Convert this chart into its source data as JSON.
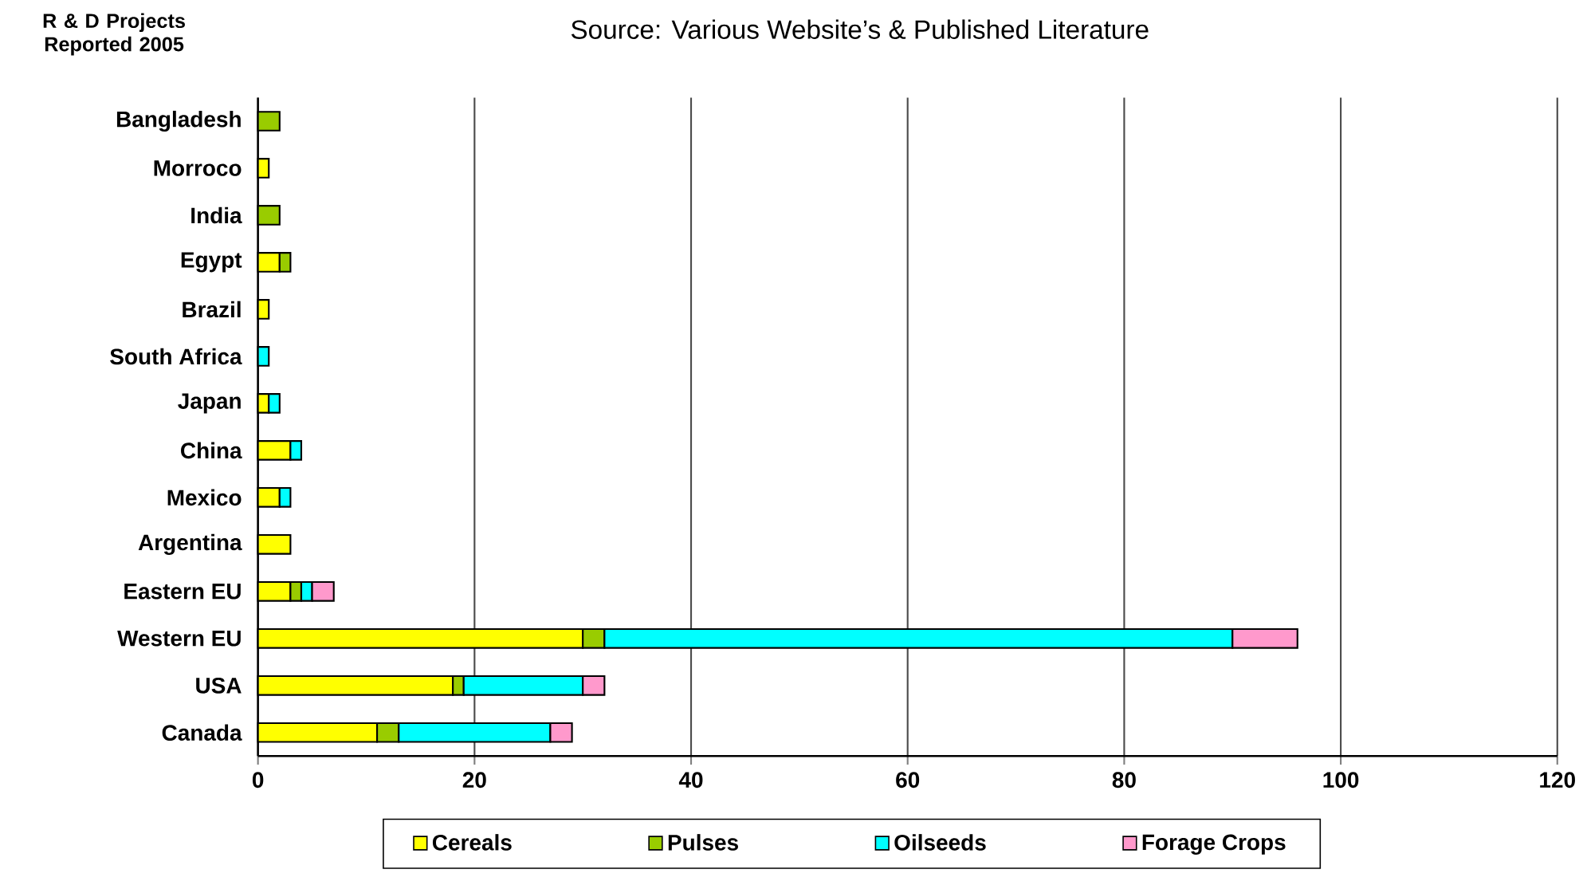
{
  "chart_data": {
    "type": "bar",
    "orientation": "horizontal",
    "stacked": true,
    "title": "R & D Projects Reported 2005",
    "annotations": [
      "Source: Various Website’s & Published Literature"
    ],
    "categories": [
      "Bangladesh",
      "Morroco",
      "India",
      "Egypt",
      "Brazil",
      "South Africa",
      "Japan",
      "China",
      "Mexico",
      "Argentina",
      "Eastern EU",
      "Western EU",
      "USA",
      "Canada"
    ],
    "series": [
      {
        "name": "Cereals",
        "color": "#ffff00",
        "values": [
          0,
          1,
          0,
          2,
          1,
          0,
          1,
          3,
          2,
          3,
          3,
          30,
          18,
          11
        ]
      },
      {
        "name": "Pulses",
        "color": "#99cc00",
        "values": [
          2,
          0,
          2,
          1,
          0,
          0,
          0,
          0,
          0,
          0,
          1,
          2,
          1,
          2
        ]
      },
      {
        "name": "Oilseeds",
        "color": "#00ffff",
        "values": [
          0,
          0,
          0,
          0,
          0,
          1,
          1,
          1,
          1,
          0,
          1,
          58,
          11,
          14
        ]
      },
      {
        "name": "Forage Crops",
        "color": "#ff99cc",
        "values": [
          0,
          0,
          0,
          0,
          0,
          0,
          0,
          0,
          0,
          0,
          2,
          6,
          2,
          2
        ]
      }
    ],
    "xlim": [
      0,
      120
    ],
    "xticks": [
      0,
      20,
      40,
      60,
      80,
      100,
      120
    ],
    "grid": "x",
    "legend": "bottom"
  }
}
